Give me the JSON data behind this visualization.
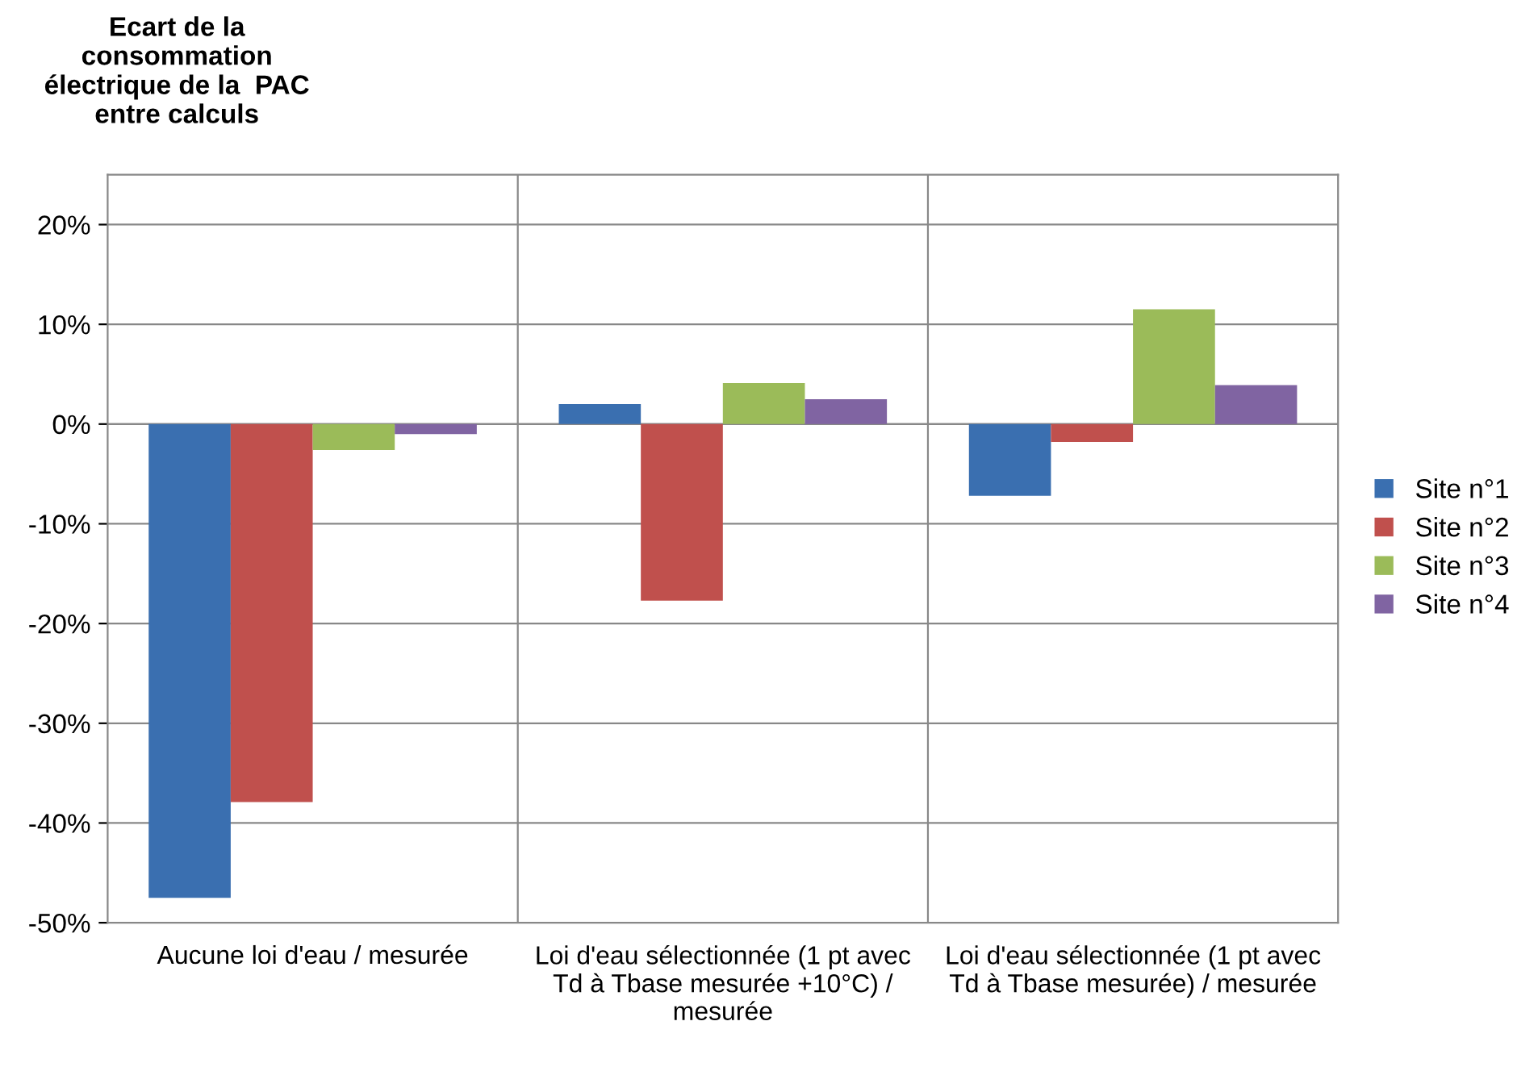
{
  "chart_data": {
    "type": "bar",
    "ylabel": "Ecart de la\nconsommation\nélectrique de la  PAC\nentre calculs",
    "categories": [
      "Aucune loi d'eau / mesurée",
      "Loi d'eau sélectionnée (1 pt avec\nTd à Tbase mesurée +10°C) /\nmesurée",
      "Loi d'eau sélectionnée (1 pt avec\nTd à Tbase mesurée) / mesurée"
    ],
    "series": [
      {
        "name": "Site n°1",
        "color": "#3a6fb0",
        "values": [
          -47.5,
          2.0,
          -7.2
        ]
      },
      {
        "name": "Site n°2",
        "color": "#c0504d",
        "values": [
          -37.9,
          -17.7,
          -1.8
        ]
      },
      {
        "name": "Site n°3",
        "color": "#9bbb59",
        "values": [
          -2.6,
          4.1,
          11.5
        ]
      },
      {
        "name": "Site n°4",
        "color": "#8064a2",
        "values": [
          -1.0,
          2.5,
          3.9
        ]
      }
    ],
    "ylim": [
      -50,
      25
    ],
    "yticks": [
      {
        "value": -50,
        "label": "-50%"
      },
      {
        "value": -40,
        "label": "-40%"
      },
      {
        "value": -30,
        "label": "-30%"
      },
      {
        "value": -20,
        "label": "-20%"
      },
      {
        "value": -10,
        "label": "-10%"
      },
      {
        "value": 0,
        "label": "0%"
      },
      {
        "value": 10,
        "label": "10%"
      },
      {
        "value": 20,
        "label": "20%"
      }
    ],
    "grid": true,
    "legend": "right"
  }
}
